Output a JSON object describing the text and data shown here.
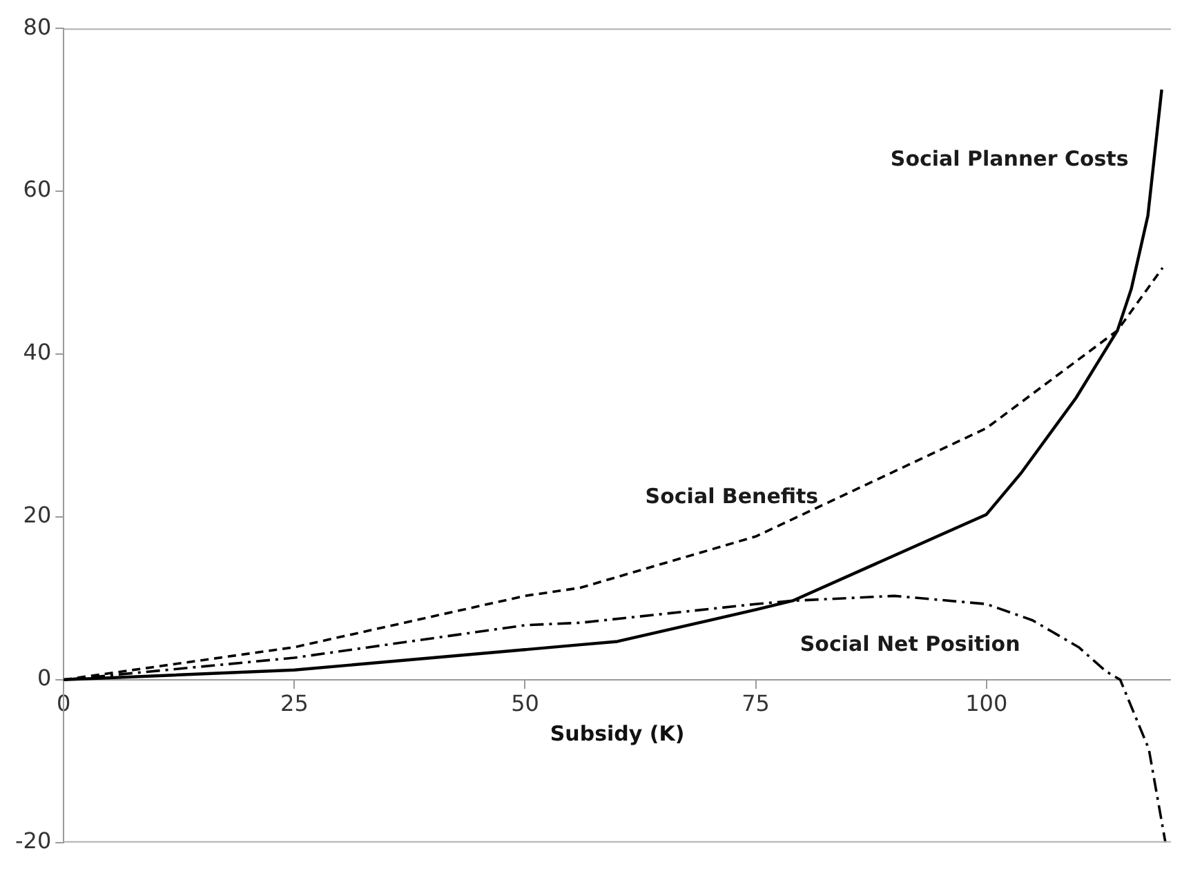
{
  "chart_data": {
    "type": "line",
    "xlabel": "Subsidy (K)",
    "xlim": [
      0,
      120
    ],
    "xticks": [
      0,
      25,
      50,
      75,
      100
    ],
    "ylim": [
      -20,
      80
    ],
    "yticks": [
      -20,
      0,
      20,
      40,
      60,
      80
    ],
    "grid": false,
    "legend": false,
    "marker": "none",
    "series": [
      {
        "name": "Social Planner Costs",
        "color": "#000000",
        "line_style": "solid",
        "x": [
          0,
          25,
          50,
          56,
          60,
          75,
          79,
          100,
          103.7,
          109.7,
          114.2,
          115.7,
          117.5,
          119
        ],
        "values": [
          0,
          1.2,
          3.7,
          4.3,
          4.7,
          8.6,
          9.7,
          20.3,
          25.3,
          34.6,
          42.9,
          48,
          57,
          72.5
        ]
      },
      {
        "name": "Social Benefits",
        "color": "#000000",
        "line_style": "dashed",
        "x": [
          0,
          25,
          50,
          56,
          75,
          100,
          114.2,
          119.1
        ],
        "values": [
          0,
          4,
          10.3,
          11.3,
          17.6,
          30.9,
          42.9,
          50.6
        ]
      },
      {
        "name": "Social Net Position",
        "color": "#000000",
        "line_style": "dashdot",
        "x": [
          0,
          25,
          50,
          56,
          75,
          79,
          90,
          100,
          105,
          110,
          113,
          114.5,
          117.6,
          119.4
        ],
        "values": [
          0,
          2.7,
          6.7,
          7,
          9.3,
          9.7,
          10.3,
          9.3,
          7.3,
          4,
          1,
          0,
          -8.5,
          -20
        ]
      }
    ]
  }
}
